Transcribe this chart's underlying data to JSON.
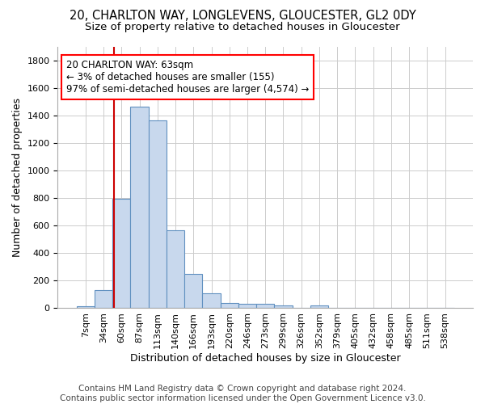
{
  "title1": "20, CHARLTON WAY, LONGLEVENS, GLOUCESTER, GL2 0DY",
  "title2": "Size of property relative to detached houses in Gloucester",
  "xlabel": "Distribution of detached houses by size in Gloucester",
  "ylabel": "Number of detached properties",
  "footer1": "Contains HM Land Registry data © Crown copyright and database right 2024.",
  "footer2": "Contains public sector information licensed under the Open Government Licence v3.0.",
  "annotation_title": "20 CHARLTON WAY: 63sqm",
  "annotation_line1": "← 3% of detached houses are smaller (155)",
  "annotation_line2": "97% of semi-detached houses are larger (4,574) →",
  "bar_color": "#c8d8ed",
  "bar_edge_color": "#6090c0",
  "vline_color": "#cc0000",
  "vline_x": 1.575,
  "categories": [
    "7sqm",
    "34sqm",
    "60sqm",
    "87sqm",
    "113sqm",
    "140sqm",
    "166sqm",
    "193sqm",
    "220sqm",
    "246sqm",
    "273sqm",
    "299sqm",
    "326sqm",
    "352sqm",
    "379sqm",
    "405sqm",
    "432sqm",
    "458sqm",
    "485sqm",
    "511sqm",
    "538sqm"
  ],
  "values": [
    15,
    130,
    795,
    1465,
    1365,
    565,
    250,
    110,
    38,
    30,
    30,
    20,
    0,
    20,
    0,
    0,
    0,
    0,
    0,
    0,
    0
  ],
  "ylim": [
    0,
    1900
  ],
  "yticks": [
    0,
    200,
    400,
    600,
    800,
    1000,
    1200,
    1400,
    1600,
    1800
  ],
  "grid_color": "#cccccc",
  "background_color": "#ffffff",
  "title1_fontsize": 10.5,
  "title2_fontsize": 9.5,
  "axis_label_fontsize": 9,
  "tick_fontsize": 8,
  "footer_fontsize": 7.5
}
